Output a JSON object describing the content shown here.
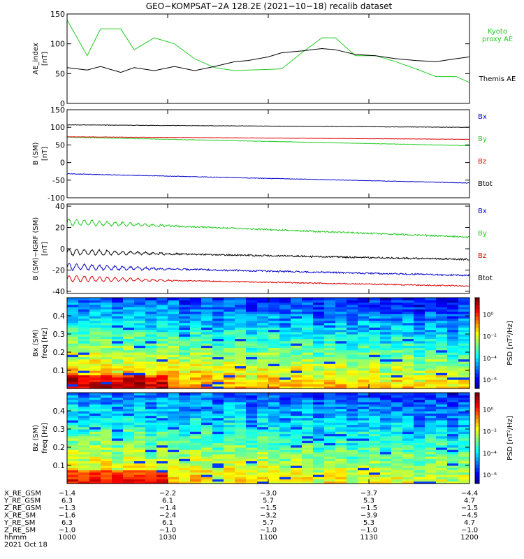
{
  "title": "GEO−KOMPSAT−2A 128.2E (2021−10−18) recalib dataset",
  "colors": {
    "black": "#000000",
    "green": "#22cc22",
    "red": "#dd0000",
    "blue": "#0000cc"
  },
  "chart_data": [
    {
      "type": "line",
      "ylabel": "AE_index",
      "yunit": "[nT]",
      "ylim": [
        0,
        150
      ],
      "yticks": [
        0,
        50,
        100,
        150
      ],
      "x_start_hhmm": "1000",
      "x_end_hhmm": "1200",
      "series": [
        {
          "name": "Kyoto\nproxy AE",
          "color": "green",
          "x_min": [
            0,
            6,
            10,
            16,
            20,
            26,
            32,
            38,
            44,
            50,
            54,
            60,
            64,
            70,
            76,
            80,
            86,
            92,
            98,
            104,
            110,
            116,
            120
          ],
          "values": [
            140,
            80,
            125,
            125,
            90,
            110,
            100,
            75,
            60,
            55,
            56,
            57,
            58,
            85,
            110,
            110,
            80,
            80,
            70,
            58,
            45,
            45,
            35
          ]
        },
        {
          "name": "Themis AE",
          "color": "black",
          "x_min": [
            0,
            6,
            10,
            16,
            20,
            26,
            32,
            38,
            44,
            50,
            54,
            60,
            64,
            70,
            76,
            80,
            86,
            92,
            98,
            104,
            110,
            116,
            120
          ],
          "values": [
            60,
            56,
            62,
            52,
            60,
            55,
            62,
            55,
            62,
            70,
            72,
            78,
            85,
            88,
            92,
            90,
            82,
            80,
            75,
            72,
            70,
            75,
            78
          ]
        }
      ]
    },
    {
      "type": "line",
      "ylabel": "B (SM)",
      "yunit": "[nT]",
      "ylim": [
        -100,
        150
      ],
      "yticks": [
        -100,
        -50,
        0,
        50,
        100,
        150
      ],
      "series": [
        {
          "name": "Bx",
          "color": "blue",
          "values_start": -32,
          "values_end": -58,
          "noise": 1.5
        },
        {
          "name": "By",
          "color": "green",
          "values_start": 72,
          "values_end": 48,
          "noise": 1.2
        },
        {
          "name": "Bz",
          "color": "red",
          "values_start": 73,
          "values_end": 66,
          "noise": 1.0
        },
        {
          "name": "Btot",
          "color": "black",
          "values_start": 107,
          "values_end": 100,
          "noise": 1.2
        }
      ]
    },
    {
      "type": "line",
      "ylabel": "B (SM)−IGRF (SM)",
      "yunit": "[nT]",
      "ylim": [
        -42,
        42
      ],
      "yticks": [
        -40,
        -20,
        0,
        20,
        40
      ],
      "series": [
        {
          "name": "Bx",
          "color": "blue",
          "values_start": -17,
          "values_end": -25,
          "noise": 1.5
        },
        {
          "name": "By",
          "color": "green",
          "values_start": 25,
          "values_end": 11,
          "noise": 1.5
        },
        {
          "name": "Bz",
          "color": "red",
          "values_start": -28,
          "values_end": -35,
          "noise": 1.0
        },
        {
          "name": "Btot",
          "color": "black",
          "values_start": -3,
          "values_end": -10,
          "noise": 1.5
        }
      ]
    },
    {
      "type": "heatmap",
      "ylabel": "Bx (SM)",
      "yunit": "freq [Hz]",
      "ylim": [
        0,
        0.5
      ],
      "yticks": [
        0.1,
        0.2,
        0.3,
        0.4
      ],
      "colorbar": {
        "label": "PSD [nT²/Hz]",
        "ticks": [
          "10⁰",
          "10⁻²",
          "10⁻⁴",
          "10⁻⁶"
        ]
      }
    },
    {
      "type": "heatmap",
      "ylabel": "Bz (SM)",
      "yunit": "freq [Hz]",
      "ylim": [
        0,
        0.5
      ],
      "yticks": [
        0.1,
        0.2,
        0.3,
        0.4
      ],
      "colorbar": {
        "label": "PSD [nT²/Hz]",
        "ticks": [
          "10⁰",
          "10⁻²",
          "10⁻⁴",
          "10⁻⁶"
        ]
      }
    }
  ],
  "ephemeris": {
    "rows": [
      {
        "label": "X_RE_GSM",
        "values": [
          "−1.4",
          "−2.2",
          "−3.0",
          "−3.7",
          "−4.4"
        ]
      },
      {
        "label": "Y_RE_GSM",
        "values": [
          "6.3",
          "6.1",
          "5.7",
          "5.3",
          "4.7"
        ]
      },
      {
        "label": "Z_RE_GSM",
        "values": [
          "−1.3",
          "−1.4",
          "−1.5",
          "−1.5",
          "−1.5"
        ]
      },
      {
        "label": "X_RE_SM",
        "values": [
          "−1.6",
          "−2.4",
          "−3.2",
          "−3.9",
          "−4.5"
        ]
      },
      {
        "label": "Y_RE_SM",
        "values": [
          "6.3",
          "6.1",
          "5.7",
          "5.3",
          "4.7"
        ]
      },
      {
        "label": "Z_RE_SM",
        "values": [
          "−1.0",
          "−1.0",
          "−1.0",
          "−1.0",
          "−1.0"
        ]
      },
      {
        "label": "hhmm",
        "values": [
          "1000",
          "1030",
          "1100",
          "1130",
          "1200"
        ]
      }
    ],
    "date": "2021 Oct 18"
  }
}
